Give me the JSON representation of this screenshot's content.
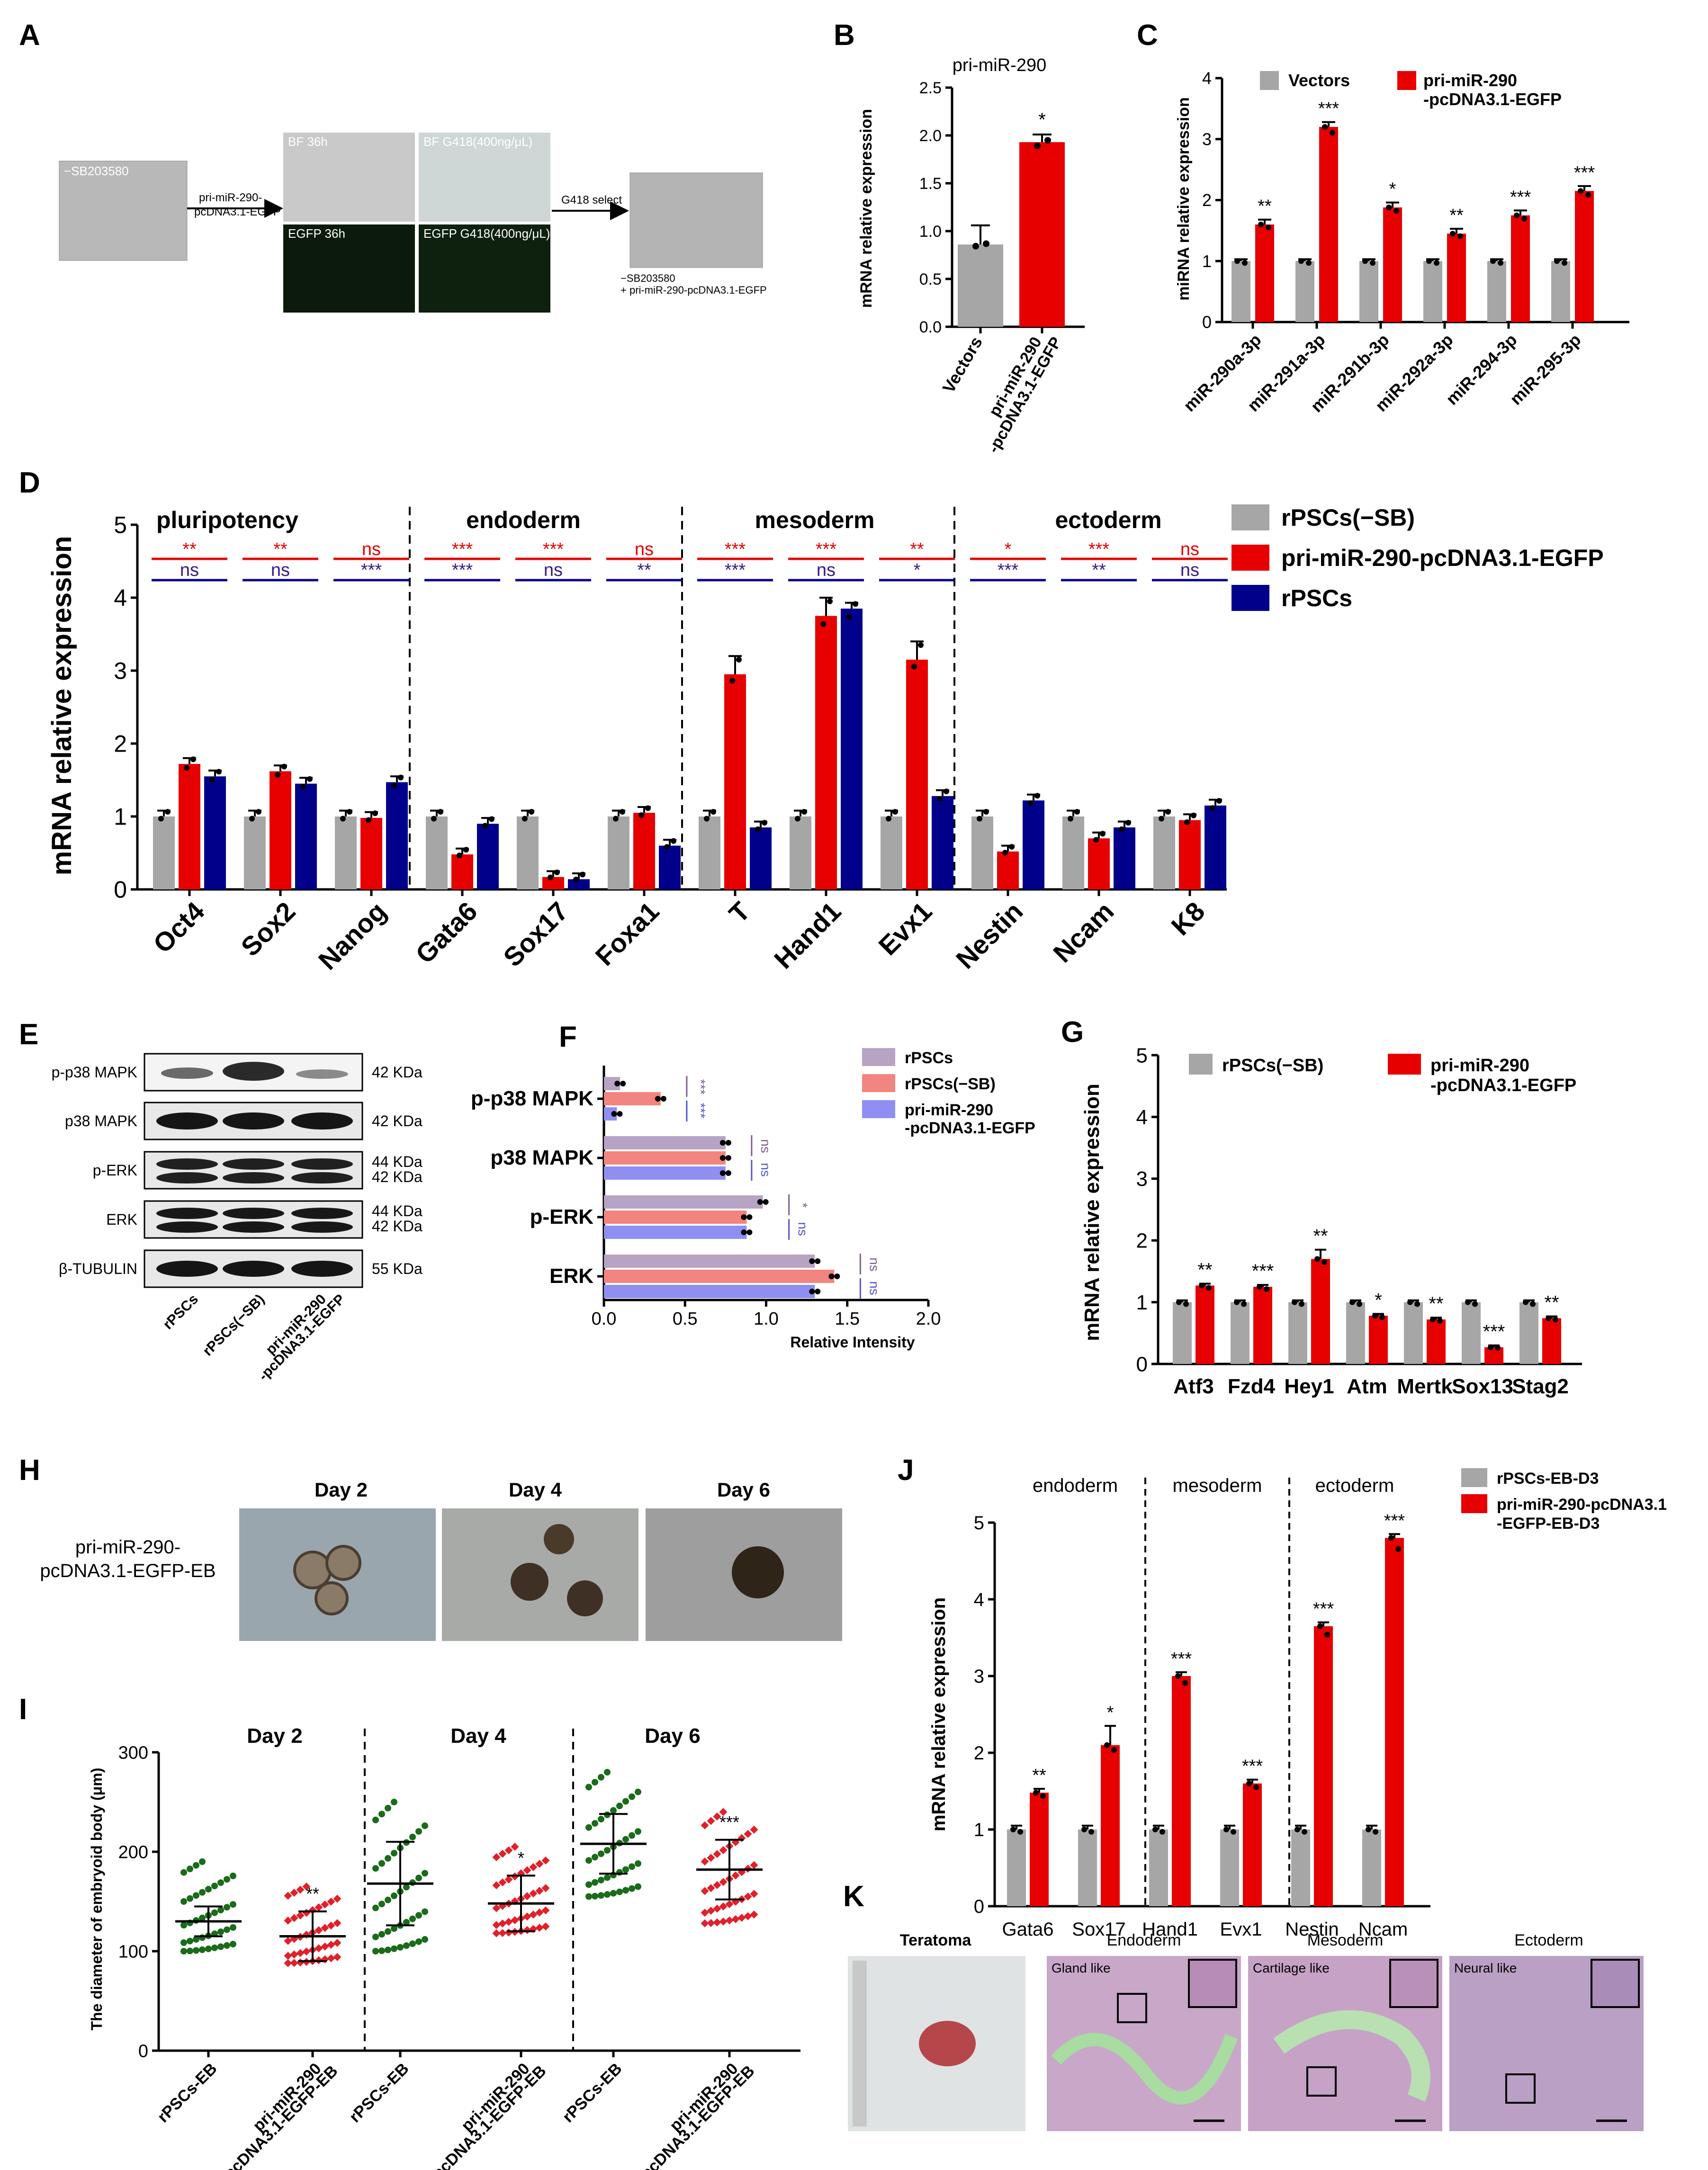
{
  "panels": {
    "A": {
      "letter": "A",
      "img_left": "−SB203580",
      "arrow1_line1": "pri-miR-290-",
      "arrow1_line2": "pcDNA3.1-EGFP",
      "bf36": "BF 36h",
      "bfg418": "BF G418(400ng/μL)",
      "egfp36": "EGFP 36h",
      "egfpg418": "EGFP G418(400ng/μL)",
      "arrow2": "G418 select",
      "cap1": "−SB203580",
      "cap2": "+ pri-miR-290-pcDNA3.1-EGFP"
    },
    "B": {
      "letter": "B"
    },
    "C": {
      "letter": "C"
    },
    "D": {
      "letter": "D"
    },
    "E": {
      "letter": "E",
      "rows": [
        {
          "label": "p-p38 MAPK",
          "kda": [
            "42 KDa"
          ]
        },
        {
          "label": "p38 MAPK",
          "kda": [
            "42 KDa"
          ]
        },
        {
          "label": "p-ERK",
          "kda": [
            "44 KDa",
            "42 KDa"
          ]
        },
        {
          "label": "ERK",
          "kda": [
            "44 KDa",
            "42 KDa"
          ]
        },
        {
          "label": "β-TUBULIN",
          "kda": [
            "55 KDa"
          ]
        }
      ],
      "lanes": [
        "rPSCs",
        "rPSCs(−SB)",
        "pri-miR-290",
        "-pcDNA3.1-EGFP"
      ]
    },
    "F": {
      "letter": "F"
    },
    "G": {
      "letter": "G"
    },
    "H": {
      "letter": "H",
      "row_label1": "pri-miR-290-",
      "row_label2": "pcDNA3.1-EGFP-EB",
      "days": [
        "Day 2",
        "Day 4",
        "Day 6"
      ]
    },
    "I": {
      "letter": "I"
    },
    "J": {
      "letter": "J"
    },
    "K": {
      "letter": "K",
      "titles": [
        "Teratoma",
        "Endoderm",
        "Mesoderm",
        "Ectoderm"
      ],
      "insets": [
        "Gland like",
        "Cartilage like",
        "Neural like"
      ]
    }
  },
  "colors": {
    "grey": "#a6a6a6",
    "red": "#e60000",
    "navy": "#00008b",
    "purple": "#b7a3c4",
    "salmon": "#f2857f",
    "lavender": "#8f8ff2",
    "green": "#1a6b1a",
    "dotred": "#e0202a"
  },
  "chart_data": [
    {
      "id": "B",
      "type": "bar",
      "title": "pri-miR-290",
      "ylabel": "mRNA  relative expression",
      "categories": [
        "Vectors",
        "pri-miR-290 -pcDNA3.1-EGFP"
      ],
      "values": [
        0.86,
        1.93
      ],
      "errors": [
        0.2,
        0.08
      ],
      "ylim": [
        0,
        2.5
      ],
      "yticks": [
        "0.0",
        "0.5",
        "1.0",
        "1.5",
        "2.0",
        "2.5"
      ],
      "significance": [
        "",
        "*"
      ]
    },
    {
      "id": "C",
      "type": "bar",
      "ylabel": "miRNA  relative expression",
      "categories": [
        "miR-290a-3p",
        "miR-291a-3p",
        "miR-291b-3p",
        "miR-292a-3p",
        "miR-294-3p",
        "miR-295-3p"
      ],
      "series": [
        {
          "name": "Vectors",
          "values": [
            1,
            1,
            1,
            1,
            1,
            1
          ]
        },
        {
          "name": "pri-miR-290 -pcDNA3.1-EGFP",
          "values": [
            1.6,
            3.2,
            1.88,
            1.45,
            1.75,
            2.15
          ]
        }
      ],
      "ylim": [
        0,
        4
      ],
      "yticks": [
        "0",
        "1",
        "2",
        "3",
        "4"
      ],
      "significance": [
        "**",
        "***",
        "*",
        "**",
        "***",
        "***"
      ]
    },
    {
      "id": "D",
      "type": "bar",
      "ylabel": "mRNA relative  expression",
      "categories": [
        "Oct4",
        "Sox2",
        "Nanog",
        "Gata6",
        "Sox17",
        "Foxa1",
        "T",
        "Hand1",
        "Evx1",
        "Nestin",
        "Ncam",
        "K8"
      ],
      "groups": [
        "pluripotency",
        "endoderm",
        "mesoderm",
        "ectoderm"
      ],
      "series": [
        {
          "name": "rPSCs(−SB)",
          "values": [
            1,
            1,
            1,
            1,
            1,
            1,
            1,
            1,
            1,
            1,
            1,
            1
          ]
        },
        {
          "name": "pri-miR-290-pcDNA3.1-EGFP",
          "values": [
            1.72,
            1.62,
            0.98,
            0.48,
            0.17,
            1.05,
            2.95,
            3.75,
            3.15,
            0.52,
            0.7,
            0.95
          ]
        },
        {
          "name": "rPSCs",
          "values": [
            1.55,
            1.45,
            1.47,
            0.9,
            0.14,
            0.6,
            0.85,
            3.85,
            1.28,
            1.22,
            0.85,
            1.15
          ]
        }
      ],
      "sig_red": [
        "**",
        "**",
        "ns",
        "***",
        "***",
        "ns",
        "***",
        "***",
        "**",
        "*",
        "***",
        "ns"
      ],
      "sig_blue": [
        "ns",
        "ns",
        "***",
        "***",
        "ns",
        "**",
        "***",
        "ns",
        "*",
        "***",
        "**",
        "ns"
      ],
      "ylim": [
        0,
        5
      ],
      "yticks": [
        "0",
        "1",
        "2",
        "3",
        "4",
        "5"
      ]
    },
    {
      "id": "F",
      "type": "bar",
      "xlabel": "Relative Intensity",
      "categories": [
        "p-p38 MAPK",
        "p38 MAPK",
        "p-ERK",
        "ERK"
      ],
      "series": [
        {
          "name": "rPSCs",
          "values": [
            0.1,
            0.75,
            0.98,
            1.3
          ]
        },
        {
          "name": "rPSCs(−SB)",
          "values": [
            0.35,
            0.75,
            0.88,
            1.42
          ]
        },
        {
          "name": "pri-miR-290 -pcDNA3.1-EGFP",
          "values": [
            0.08,
            0.75,
            0.88,
            1.3
          ]
        }
      ],
      "sig1": [
        "***",
        "ns",
        "*",
        "ns"
      ],
      "sig2": [
        "***",
        "ns",
        "ns",
        "ns"
      ],
      "xlim": [
        0,
        2
      ],
      "xticks": [
        "0.0",
        "0.5",
        "1.0",
        "1.5",
        "2.0"
      ]
    },
    {
      "id": "G",
      "type": "bar",
      "ylabel": "mRNA relative  expression",
      "categories": [
        "Atf3",
        "Fzd4",
        "Hey1",
        "Atm",
        "Mertk",
        "Sox13",
        "Stag2"
      ],
      "series": [
        {
          "name": "rPSCs(−SB)",
          "values": [
            1,
            1,
            1,
            1,
            1,
            1,
            1
          ]
        },
        {
          "name": "pri-miR-290 -pcDNA3.1-EGFP",
          "values": [
            1.27,
            1.25,
            1.7,
            0.78,
            0.72,
            0.27,
            0.74
          ]
        }
      ],
      "significance": [
        "**",
        "***",
        "**",
        "*",
        "**",
        "***",
        "**"
      ],
      "ylim": [
        0,
        5
      ],
      "yticks": [
        "0",
        "1",
        "2",
        "3",
        "4",
        "5"
      ]
    },
    {
      "id": "I",
      "type": "scatter",
      "ylabel": "The diameter of embryoid body (μm)",
      "groups": [
        "Day 2",
        "Day 4",
        "Day 6"
      ],
      "categories": [
        "rPSCs-EB",
        "pri-miR-290 -pcDNA3.1-EGFP-EB",
        "rPSCs-EB",
        "pri-miR-290 -pcDNA3.1-EGFP-EB",
        "rPSCs-EB",
        "pri-miR-290 -pcDNA3.1-EGFP-EB"
      ],
      "means": [
        130,
        115,
        168,
        148,
        208,
        182
      ],
      "sds": [
        15,
        25,
        42,
        28,
        30,
        30
      ],
      "mins": [
        100,
        88,
        100,
        118,
        155,
        128
      ],
      "maxs": [
        190,
        165,
        250,
        205,
        280,
        240
      ],
      "significance": [
        "",
        "**",
        "",
        "*",
        "",
        "***"
      ],
      "ylim": [
        0,
        300
      ],
      "yticks": [
        "0",
        "100",
        "200",
        "300"
      ]
    },
    {
      "id": "J",
      "type": "bar",
      "ylabel": "mRNA relative  expression",
      "categories": [
        "Gata6",
        "Sox17",
        "Hand1",
        "Evx1",
        "Nestin",
        "Ncam"
      ],
      "groups": [
        "endoderm",
        "mesoderm",
        "ectoderm"
      ],
      "series": [
        {
          "name": "rPSCs-EB-D3",
          "values": [
            1,
            1,
            1,
            1,
            1,
            1
          ]
        },
        {
          "name": "pri-miR-290-pcDNA3.1 -EGFP-EB-D3",
          "values": [
            1.48,
            2.1,
            3,
            1.6,
            3.65,
            4.8
          ]
        }
      ],
      "significance": [
        "**",
        "*",
        "***",
        "***",
        "***",
        "***"
      ],
      "ylim": [
        0,
        5
      ],
      "yticks": [
        "0",
        "1",
        "2",
        "3",
        "4",
        "5"
      ]
    }
  ]
}
